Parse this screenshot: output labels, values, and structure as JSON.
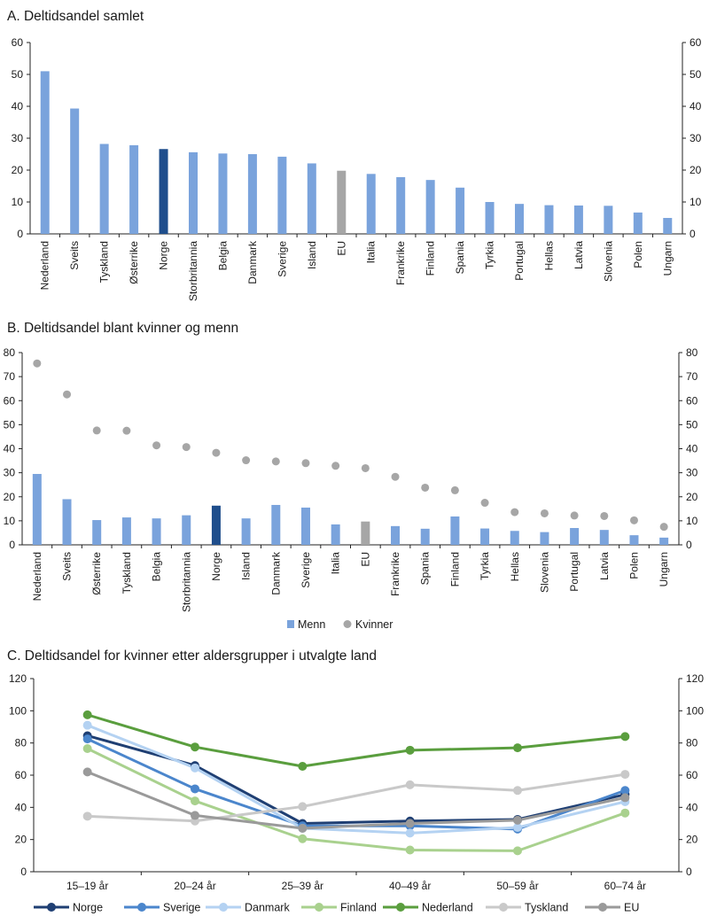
{
  "chart_data": [
    {
      "type": "bar",
      "title": "A. Deltidsandel samlet",
      "ylim": [
        0,
        60
      ],
      "yticks": [
        0,
        10,
        20,
        30,
        40,
        50,
        60
      ],
      "categories": [
        "Nederland",
        "Sveits",
        "Tyskland",
        "Østerrike",
        "Norge",
        "Storbritannia",
        "Belgia",
        "Danmark",
        "Sverige",
        "Island",
        "EU",
        "Italia",
        "Frankrike",
        "Finland",
        "Spania",
        "Tyrkia",
        "Portugal",
        "Hellas",
        "Latvia",
        "Slovenia",
        "Polen",
        "Ungarn"
      ],
      "values": [
        51,
        39.3,
        28.2,
        27.8,
        26.6,
        25.6,
        25.2,
        25,
        24.2,
        22.1,
        19.8,
        18.8,
        17.8,
        16.9,
        14.5,
        10,
        9.4,
        9,
        8.9,
        8.8,
        6.7,
        5
      ],
      "highlight": {
        "Norge": "#1f4e8c",
        "EU": "#a6a6a6"
      },
      "color": "#7aa3dc"
    },
    {
      "type": "bar",
      "title": "B. Deltidsandel blant kvinner og menn",
      "ylim": [
        0,
        80
      ],
      "yticks": [
        0,
        10,
        20,
        30,
        40,
        50,
        60,
        70,
        80
      ],
      "categories": [
        "Nederland",
        "Sveits",
        "Østerrike",
        "Tyskland",
        "Belgia",
        "Storbritannia",
        "Norge",
        "Island",
        "Danmark",
        "Sverige",
        "Italia",
        "EU",
        "Frankrike",
        "Spania",
        "Finland",
        "Tyrkia",
        "Hellas",
        "Slovenia",
        "Portugal",
        "Latvia",
        "Polen",
        "Ungarn"
      ],
      "series": [
        {
          "name": "Menn",
          "kind": "bar",
          "color": "#7aa3dc",
          "values": [
            29.5,
            19,
            10.3,
            11.4,
            11,
            12.3,
            16.3,
            11,
            16.6,
            15.5,
            8.5,
            9.7,
            7.8,
            6.7,
            11.8,
            6.8,
            5.8,
            5.3,
            7,
            6.2,
            4,
            3
          ]
        },
        {
          "name": "Kvinner",
          "kind": "scatter",
          "color": "#a6a6a6",
          "values": [
            75.5,
            62.6,
            47.6,
            47.5,
            41.4,
            40.7,
            38.3,
            35.2,
            34.7,
            34,
            32.9,
            31.9,
            28.3,
            23.8,
            22.7,
            17.5,
            13.6,
            13.1,
            12.2,
            12,
            10.2,
            7.5
          ]
        }
      ],
      "highlight": {
        "Norge": "#1f4e8c",
        "EU": "#a6a6a6"
      },
      "legend": [
        "Menn",
        "Kvinner"
      ]
    },
    {
      "type": "line",
      "title": "C. Deltidsandel for kvinner etter aldersgrupper i utvalgte land",
      "ylim": [
        0,
        120
      ],
      "yticks": [
        0,
        20,
        40,
        60,
        80,
        100,
        120
      ],
      "categories": [
        "15–19 år",
        "20–24 år",
        "25–39 år",
        "40–49 år",
        "50–59 år",
        "60–74 år"
      ],
      "series": [
        {
          "name": "Norge",
          "color": "#1f3f73",
          "values": [
            84.5,
            66,
            30,
            31.5,
            32.5,
            48
          ]
        },
        {
          "name": "Sverige",
          "color": "#4b86cc",
          "values": [
            82.5,
            51.5,
            28.5,
            28.5,
            26.5,
            50.5
          ]
        },
        {
          "name": "Danmark",
          "color": "#b4d2f2",
          "values": [
            91,
            64.5,
            27,
            24,
            27.5,
            43.5
          ]
        },
        {
          "name": "Finland",
          "color": "#a9d18e",
          "values": [
            76.5,
            44,
            20.5,
            13.5,
            13,
            36.5
          ]
        },
        {
          "name": "Nederland",
          "color": "#5a9e3e",
          "values": [
            97.5,
            77.5,
            65.5,
            75.5,
            77,
            84
          ]
        },
        {
          "name": "Tyskland",
          "color": "#c9c9c9",
          "values": [
            34.5,
            31.5,
            40.5,
            54,
            50.5,
            60.5
          ]
        },
        {
          "name": "EU",
          "color": "#9a9a9a",
          "values": [
            62,
            35,
            27,
            30,
            32,
            46
          ]
        }
      ]
    }
  ]
}
